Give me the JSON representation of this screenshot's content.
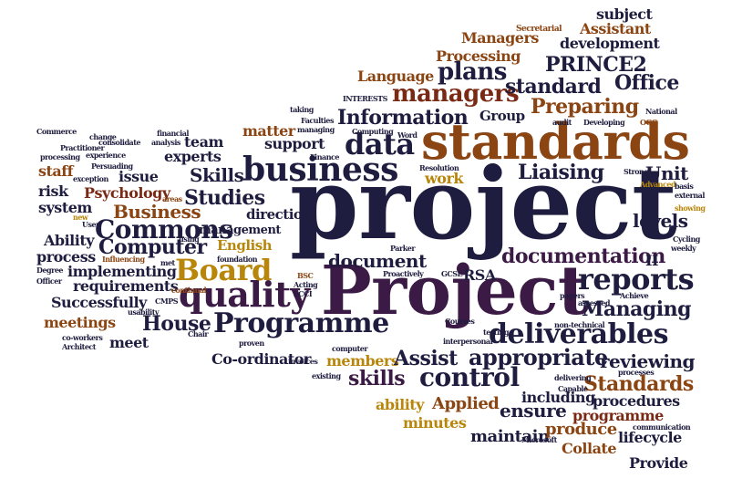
{
  "words": [
    {
      "id": "project-big",
      "text": "project",
      "color": "#1f1d3f"
    },
    {
      "id": "project-cap",
      "text": "Project",
      "color": "#3b1a45"
    },
    {
      "id": "standards",
      "text": "standards",
      "color": "#8b4513"
    },
    {
      "id": "business",
      "text": "business",
      "color": "#1f1d3f"
    },
    {
      "id": "programme-cap",
      "text": "Programme",
      "color": "#1f1d3f"
    },
    {
      "id": "deliverables",
      "text": "deliverables",
      "color": "#1f1d3f"
    },
    {
      "id": "quality",
      "text": "quality",
      "color": "#3b1a45"
    },
    {
      "id": "board",
      "text": "Board",
      "color": "#b8860b"
    },
    {
      "id": "reports",
      "text": "reports",
      "color": "#1f1d3f"
    },
    {
      "id": "documentation",
      "text": "documentation",
      "color": "#3b1a45"
    },
    {
      "id": "data",
      "text": "data",
      "color": "#1f1d3f"
    },
    {
      "id": "information",
      "text": "Information",
      "color": "#1f1d3f"
    },
    {
      "id": "managers",
      "text": "managers",
      "color": "#7a2a14"
    },
    {
      "id": "plans",
      "text": "plans",
      "color": "#1f1d3f"
    },
    {
      "id": "language",
      "text": "Language",
      "color": "#8b4513"
    },
    {
      "id": "standard",
      "text": "standard",
      "color": "#1f1d3f"
    },
    {
      "id": "office",
      "text": "Office",
      "color": "#1f1d3f"
    },
    {
      "id": "prince2",
      "text": "PRINCE2",
      "color": "#1f1d3f"
    },
    {
      "id": "processing",
      "text": "Processing",
      "color": "#8b4513"
    },
    {
      "id": "managers-cap",
      "text": "Managers",
      "color": "#8b4513"
    },
    {
      "id": "assistant",
      "text": "Assistant",
      "color": "#8b4513"
    },
    {
      "id": "development",
      "text": "development",
      "color": "#1f1d3f"
    },
    {
      "id": "subject",
      "text": "subject",
      "color": "#1f1d3f"
    },
    {
      "id": "secretarial",
      "text": "Secretarial",
      "color": "#8b4513"
    },
    {
      "id": "preparing",
      "text": "Preparing",
      "color": "#8b4513"
    },
    {
      "id": "group",
      "text": "Group",
      "color": "#1f1d3f"
    },
    {
      "id": "liaising",
      "text": "Liaising",
      "color": "#1f1d3f"
    },
    {
      "id": "unit",
      "text": "Unit",
      "color": "#1f1d3f"
    },
    {
      "id": "skills-cap",
      "text": "Skills",
      "color": "#1f1d3f"
    },
    {
      "id": "studies",
      "text": "Studies",
      "color": "#1f1d3f"
    },
    {
      "id": "psychology",
      "text": "Psychology",
      "color": "#7a2a14"
    },
    {
      "id": "business-cap",
      "text": "Business",
      "color": "#8b4513"
    },
    {
      "id": "commons",
      "text": "Commons",
      "color": "#1f1d3f"
    },
    {
      "id": "computer-cap",
      "text": "Computer",
      "color": "#1f1d3f"
    },
    {
      "id": "management",
      "text": "management",
      "color": "#1f1d3f"
    },
    {
      "id": "direction",
      "text": "direction",
      "color": "#1f1d3f"
    },
    {
      "id": "english",
      "text": "English",
      "color": "#b8860b"
    },
    {
      "id": "levels",
      "text": "levels",
      "color": "#1f1d3f"
    },
    {
      "id": "document",
      "text": "document",
      "color": "#1f1d3f"
    },
    {
      "id": "rsa",
      "text": "RSA",
      "color": "#1f1d3f"
    },
    {
      "id": "managing",
      "text": "Managing",
      "color": "#1f1d3f"
    },
    {
      "id": "house",
      "text": "House",
      "color": "#1f1d3f"
    },
    {
      "id": "meetings",
      "text": "meetings",
      "color": "#8b4513"
    },
    {
      "id": "meet",
      "text": "meet",
      "color": "#1f1d3f"
    },
    {
      "id": "successfully",
      "text": "Successfully",
      "color": "#1f1d3f"
    },
    {
      "id": "requirements",
      "text": "requirements",
      "color": "#1f1d3f"
    },
    {
      "id": "implementing",
      "text": "implementing",
      "color": "#1f1d3f"
    },
    {
      "id": "process",
      "text": "process",
      "color": "#1f1d3f"
    },
    {
      "id": "ability-cap",
      "text": "Ability",
      "color": "#1f1d3f"
    },
    {
      "id": "system",
      "text": "system",
      "color": "#1f1d3f"
    },
    {
      "id": "risk",
      "text": "risk",
      "color": "#1f1d3f"
    },
    {
      "id": "staff",
      "text": "staff",
      "color": "#8b4513"
    },
    {
      "id": "team",
      "text": "team",
      "color": "#1f1d3f"
    },
    {
      "id": "experts",
      "text": "experts",
      "color": "#1f1d3f"
    },
    {
      "id": "issue",
      "text": "issue",
      "color": "#1f1d3f"
    },
    {
      "id": "matter",
      "text": "matter",
      "color": "#8b4513"
    },
    {
      "id": "support",
      "text": "support",
      "color": "#1f1d3f"
    },
    {
      "id": "work",
      "text": "work",
      "color": "#b8860b"
    },
    {
      "id": "coordinator",
      "text": "Co-ordinator",
      "color": "#1f1d3f"
    },
    {
      "id": "members",
      "text": "members",
      "color": "#b8860b"
    },
    {
      "id": "assist",
      "text": "Assist",
      "color": "#1f1d3f"
    },
    {
      "id": "appropriate",
      "text": "appropriate",
      "color": "#1f1d3f"
    },
    {
      "id": "skills",
      "text": "skills",
      "color": "#3b1a45"
    },
    {
      "id": "control",
      "text": "control",
      "color": "#1f1d3f"
    },
    {
      "id": "reviewing",
      "text": "reviewing",
      "color": "#1f1d3f"
    },
    {
      "id": "standards-cap",
      "text": "Standards",
      "color": "#8b4513"
    },
    {
      "id": "ability",
      "text": "ability",
      "color": "#b8860b"
    },
    {
      "id": "applied",
      "text": "Applied",
      "color": "#8b4513"
    },
    {
      "id": "ensure",
      "text": "ensure",
      "color": "#1f1d3f"
    },
    {
      "id": "including",
      "text": "including",
      "color": "#1f1d3f"
    },
    {
      "id": "procedures",
      "text": "procedures",
      "color": "#1f1d3f"
    },
    {
      "id": "programme",
      "text": "programme",
      "color": "#7a2a14"
    },
    {
      "id": "minutes",
      "text": "minutes",
      "color": "#b8860b"
    },
    {
      "id": "maintain",
      "text": "maintain",
      "color": "#1f1d3f"
    },
    {
      "id": "produce",
      "text": "produce",
      "color": "#8b4513"
    },
    {
      "id": "collate",
      "text": "Collate",
      "color": "#8b4513"
    },
    {
      "id": "lifecycle",
      "text": "lifecycle",
      "color": "#1f1d3f"
    },
    {
      "id": "provide",
      "text": "Provide",
      "color": "#1f1d3f"
    },
    {
      "id": "ii",
      "text": "II",
      "color": "#1f1d3f"
    },
    {
      "id": "commerce",
      "text": "Commerce",
      "color": "#1f1d3f"
    },
    {
      "id": "practitioner",
      "text": "Practitioner",
      "color": "#1f1d3f"
    },
    {
      "id": "change",
      "text": "change",
      "color": "#1f1d3f"
    },
    {
      "id": "consolidate",
      "text": "consolidate",
      "color": "#1f1d3f"
    },
    {
      "id": "financial",
      "text": "financial",
      "color": "#1f1d3f"
    },
    {
      "id": "analysis",
      "text": "analysis",
      "color": "#1f1d3f"
    },
    {
      "id": "processing-lc",
      "text": "processing",
      "color": "#1f1d3f"
    },
    {
      "id": "experience",
      "text": "experience",
      "color": "#1f1d3f"
    },
    {
      "id": "exception",
      "text": "exception",
      "color": "#1f1d3f"
    },
    {
      "id": "persuading",
      "text": "Persuading",
      "color": "#1f1d3f"
    },
    {
      "id": "new",
      "text": "new",
      "color": "#b8860b"
    },
    {
      "id": "user",
      "text": "User",
      "color": "#1f1d3f"
    },
    {
      "id": "areas",
      "text": "areas",
      "color": "#8b4513"
    },
    {
      "id": "using",
      "text": "using",
      "color": "#1f1d3f"
    },
    {
      "id": "influencing",
      "text": "Influencing",
      "color": "#8b4513"
    },
    {
      "id": "met",
      "text": "met",
      "color": "#1f1d3f"
    },
    {
      "id": "degree",
      "text": "Degree",
      "color": "#1f1d3f"
    },
    {
      "id": "officer",
      "text": "Officer",
      "color": "#1f1d3f"
    },
    {
      "id": "cmps",
      "text": "CMPS",
      "color": "#1f1d3f"
    },
    {
      "id": "continual",
      "text": "continual",
      "color": "#8b4513"
    },
    {
      "id": "usability",
      "text": "usability",
      "color": "#1f1d3f"
    },
    {
      "id": "chair",
      "text": "Chair",
      "color": "#1f1d3f"
    },
    {
      "id": "co-workers",
      "text": "co-workers",
      "color": "#1f1d3f"
    },
    {
      "id": "architect",
      "text": "Architect",
      "color": "#1f1d3f"
    },
    {
      "id": "bsc",
      "text": "BSC",
      "color": "#8b4513"
    },
    {
      "id": "acting",
      "text": "Acting",
      "color": "#1f1d3f"
    },
    {
      "id": "lcci",
      "text": "LCCI",
      "color": "#1f1d3f"
    },
    {
      "id": "foundation",
      "text": "foundation",
      "color": "#1f1d3f"
    },
    {
      "id": "proven",
      "text": "proven",
      "color": "#1f1d3f"
    },
    {
      "id": "invoices",
      "text": "invoices",
      "color": "#1f1d3f"
    },
    {
      "id": "existing",
      "text": "existing",
      "color": "#1f1d3f"
    },
    {
      "id": "computer",
      "text": "computer",
      "color": "#1f1d3f"
    },
    {
      "id": "courses",
      "text": "Courses",
      "color": "#1f1d3f"
    },
    {
      "id": "testing",
      "text": "testing",
      "color": "#1f1d3f"
    },
    {
      "id": "interpersonal",
      "text": "interpersonal",
      "color": "#1f1d3f"
    },
    {
      "id": "gcse",
      "text": "GCSE",
      "color": "#1f1d3f"
    },
    {
      "id": "proactively",
      "text": "Proactively",
      "color": "#1f1d3f"
    },
    {
      "id": "parker",
      "text": "Parker",
      "color": "#1f1d3f"
    },
    {
      "id": "papers",
      "text": "papers",
      "color": "#1f1d3f"
    },
    {
      "id": "assessed",
      "text": "assessed",
      "color": "#1f1d3f"
    },
    {
      "id": "achieve",
      "text": "Achieve",
      "color": "#1f1d3f"
    },
    {
      "id": "non-technical",
      "text": "non-technical",
      "color": "#1f1d3f"
    },
    {
      "id": "delivering",
      "text": "delivering",
      "color": "#1f1d3f"
    },
    {
      "id": "capable",
      "text": "Capable",
      "color": "#1f1d3f"
    },
    {
      "id": "processes",
      "text": "processes",
      "color": "#1f1d3f"
    },
    {
      "id": "communication",
      "text": "communication",
      "color": "#1f1d3f"
    },
    {
      "id": "microsoft",
      "text": "Microsoft",
      "color": "#1f1d3f"
    },
    {
      "id": "resolution",
      "text": "Resolution",
      "color": "#1f1d3f"
    },
    {
      "id": "finance",
      "text": "Finance",
      "color": "#1f1d3f"
    },
    {
      "id": "strong",
      "text": "Strong",
      "color": "#1f1d3f"
    },
    {
      "id": "advanced",
      "text": "Advanced",
      "color": "#b8860b"
    },
    {
      "id": "basis",
      "text": "basis",
      "color": "#1f1d3f"
    },
    {
      "id": "external",
      "text": "external",
      "color": "#1f1d3f"
    },
    {
      "id": "showing",
      "text": "showing",
      "color": "#b8860b"
    },
    {
      "id": "cycling",
      "text": "Cycling",
      "color": "#1f1d3f"
    },
    {
      "id": "weekly",
      "text": "weekly",
      "color": "#1f1d3f"
    },
    {
      "id": "taking",
      "text": "taking",
      "color": "#1f1d3f"
    },
    {
      "id": "faculties",
      "text": "Faculties",
      "color": "#1f1d3f"
    },
    {
      "id": "managing",
      "text": "managing",
      "color": "#1f1d3f"
    },
    {
      "id": "computing",
      "text": "Computing",
      "color": "#1f1d3f"
    },
    {
      "id": "word",
      "text": "Word",
      "color": "#1f1d3f"
    },
    {
      "id": "interests",
      "text": "INTERESTS",
      "color": "#1f1d3f"
    },
    {
      "id": "audit",
      "text": "audit",
      "color": "#1f1d3f"
    },
    {
      "id": "developing",
      "text": "Developing",
      "color": "#1f1d3f"
    },
    {
      "id": "national",
      "text": "National",
      "color": "#1f1d3f"
    },
    {
      "id": "ogc",
      "text": "OGC",
      "color": "#8b4513"
    }
  ]
}
